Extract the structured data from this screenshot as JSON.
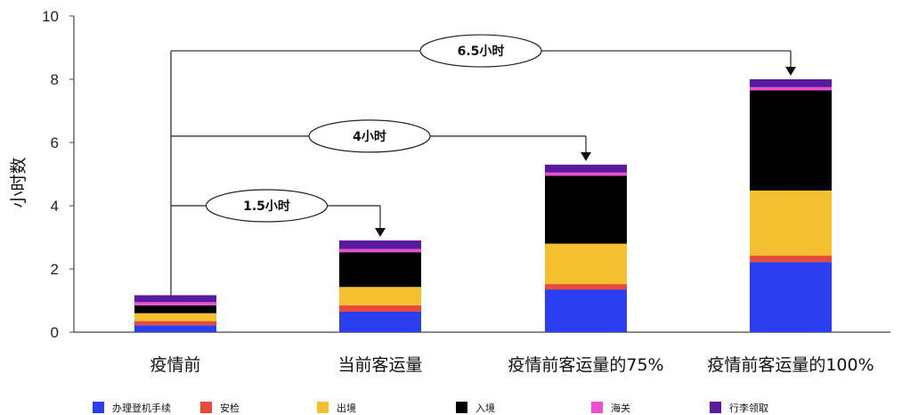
{
  "chart_data": {
    "type": "bar",
    "stacked": true,
    "ylabel": "小时数",
    "xlabel": "",
    "title": "",
    "ylim": [
      0,
      10
    ],
    "yticks": [
      0,
      2,
      4,
      6,
      8,
      10
    ],
    "grid": false,
    "legend_position": "bottom",
    "categories": [
      "疫情前",
      "当前客运量",
      "疫情前客运量的75%",
      "疫情前客运量的100%"
    ],
    "series": [
      {
        "name": "办理登机手续",
        "color": "#2b3ff0",
        "values": [
          0.22,
          0.65,
          1.35,
          2.22
        ]
      },
      {
        "name": "安检",
        "color": "#e8493a",
        "values": [
          0.13,
          0.2,
          0.17,
          0.2
        ]
      },
      {
        "name": "出境",
        "color": "#f5c02f",
        "values": [
          0.25,
          0.58,
          1.28,
          2.06
        ]
      },
      {
        "name": "入境",
        "color": "#000000",
        "values": [
          0.25,
          1.1,
          2.15,
          3.17
        ]
      },
      {
        "name": "海关",
        "color": "#ee4fcf",
        "values": [
          0.1,
          0.1,
          0.1,
          0.1
        ]
      },
      {
        "name": "行李领取",
        "color": "#5a1a9e",
        "values": [
          0.22,
          0.27,
          0.25,
          0.25
        ]
      }
    ],
    "annotations": [
      {
        "label": "1.5小时",
        "to_category": 1
      },
      {
        "label": "4小时",
        "to_category": 2
      },
      {
        "label": "6.5小时",
        "to_category": 3
      }
    ]
  }
}
